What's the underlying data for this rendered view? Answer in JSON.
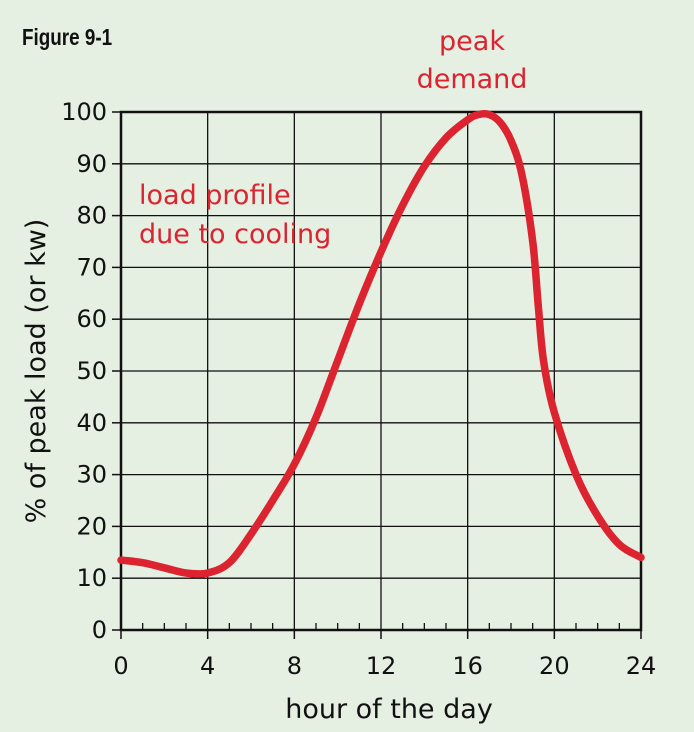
{
  "figure_label": "Figure 9-1",
  "colors": {
    "background": "#e5efe2",
    "plot_background": "#e5efe2",
    "grid": "#111111",
    "curve": "#db2430",
    "annotation": "#db2430"
  },
  "chart_data": {
    "type": "line",
    "title": "",
    "xlabel": "hour of the day",
    "ylabel": "% of peak load (or kw)",
    "xlim": [
      0,
      24
    ],
    "ylim": [
      0,
      100
    ],
    "x_ticks": [
      0,
      4,
      8,
      12,
      16,
      20,
      24
    ],
    "y_ticks": [
      0,
      10,
      20,
      30,
      40,
      50,
      60,
      70,
      80,
      90,
      100
    ],
    "x_minor_step": 1,
    "grid": true,
    "legend": "none",
    "series": [
      {
        "x": [
          0,
          1,
          2,
          3,
          4,
          5,
          6,
          7,
          8,
          9,
          10,
          11,
          12,
          13,
          14,
          15,
          16,
          16.5,
          17,
          17.5,
          18,
          18.5,
          19,
          19.25,
          19.5,
          20,
          21,
          22,
          23,
          24
        ],
        "y": [
          13.5,
          13,
          12,
          11,
          11,
          13,
          18.5,
          25,
          32,
          41,
          52,
          63,
          73,
          82,
          89.5,
          95,
          98.5,
          99.5,
          99.5,
          98,
          94.5,
          88,
          75,
          63,
          52,
          42,
          30,
          22,
          16.5,
          14
        ]
      }
    ],
    "annotations": [
      {
        "lines": [
          "peak",
          "demand"
        ],
        "at_x": 16.9
      },
      {
        "lines": [
          "load profile",
          "due to cooling"
        ],
        "at_x": 1.0
      }
    ]
  }
}
